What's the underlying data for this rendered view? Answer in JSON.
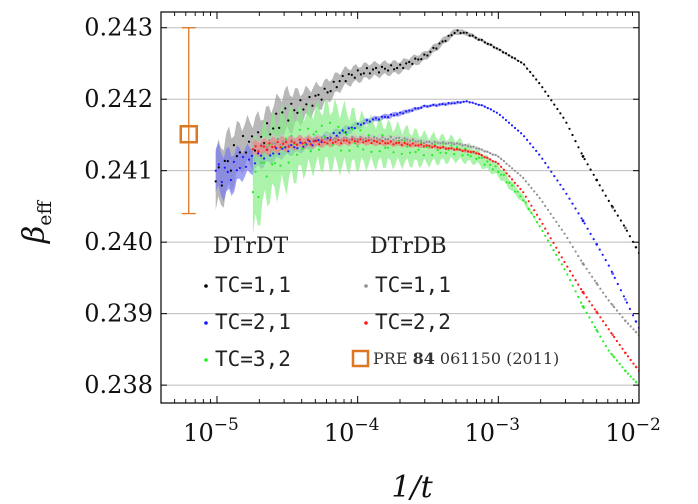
{
  "chart_data": {
    "type": "scatter",
    "xlabel": "1/t",
    "ylabel_main": "β",
    "ylabel_sub": "eff",
    "x_scale": "log",
    "xlim": [
      4e-06,
      0.01
    ],
    "ylim": [
      0.23775,
      0.24322
    ],
    "x_ticks": [
      {
        "value": 1e-05,
        "base": "10",
        "exp": "−5"
      },
      {
        "value": 0.0001,
        "base": "10",
        "exp": "−4"
      },
      {
        "value": 0.001,
        "base": "10",
        "exp": "−3"
      },
      {
        "value": 0.01,
        "base": "10",
        "exp": "−2"
      }
    ],
    "y_ticks": [
      {
        "value": 0.238,
        "label": "0.238"
      },
      {
        "value": 0.239,
        "label": "0.239"
      },
      {
        "value": 0.24,
        "label": "0.240"
      },
      {
        "value": 0.241,
        "label": "0.241"
      },
      {
        "value": 0.242,
        "label": "0.242"
      },
      {
        "value": 0.243,
        "label": "0.243"
      }
    ],
    "grid": "horizontal",
    "legend": {
      "placement": "bottom-left",
      "group_titles": [
        "DTrDT",
        "DTrDB"
      ],
      "entries": [
        {
          "series": "dtrdt_11",
          "label": "TC=1,1"
        },
        {
          "series": "dtrdt_21",
          "label": "TC=2,1"
        },
        {
          "series": "dtrdt_32",
          "label": "TC=3,2"
        },
        {
          "series": "dtrdb_11",
          "label": "TC=1,1"
        },
        {
          "series": "dtrdb_22",
          "label": "TC=2,2"
        },
        {
          "series": "ref",
          "label_pre": "PRE ",
          "label_bold": "84",
          "label_post": " 061150 (2011)"
        }
      ]
    },
    "series": [
      {
        "id": "dtrdt_11",
        "color": "#000000",
        "band_color": "#9a9a9a",
        "x": [
          9.8e-06,
          1.2e-05,
          1.5e-05,
          1.8e-05,
          2.2e-05,
          3e-05,
          4e-05,
          6e-05,
          8e-05,
          0.00012,
          0.0002,
          0.0003,
          0.0004,
          0.0005,
          0.0006,
          0.0008,
          0.001,
          0.0015,
          0.002,
          0.003,
          0.004,
          0.006,
          0.008,
          0.01
        ],
        "y": [
          0.24085,
          0.2411,
          0.24135,
          0.2414,
          0.2415,
          0.2418,
          0.2419,
          0.2421,
          0.2423,
          0.2424,
          0.24245,
          0.2426,
          0.2428,
          0.24295,
          0.24292,
          0.2428,
          0.2427,
          0.2425,
          0.2422,
          0.2417,
          0.2412,
          0.2406,
          0.2402,
          0.23985
        ],
        "err": [
          0.0004,
          0.0004,
          0.0003,
          0.0003,
          0.0003,
          0.0003,
          0.0002,
          0.00015,
          0.00012,
          0.0001,
          8e-05,
          6e-05,
          5e-05,
          4e-05,
          3e-05,
          2e-05,
          2e-05,
          1e-05,
          0,
          0,
          0,
          0,
          0,
          0
        ]
      },
      {
        "id": "dtrdt_21",
        "color": "#1a1aff",
        "band_color": "#7a7af0",
        "x": [
          9.8e-06,
          1.2e-05,
          1.5e-05,
          2e-05,
          3e-05,
          5e-05,
          8e-05,
          0.00012,
          0.0002,
          0.0003,
          0.0005,
          0.0006,
          0.0008,
          0.001,
          0.0015,
          0.002,
          0.003,
          0.004,
          0.006,
          0.008,
          0.01
        ],
        "y": [
          0.241,
          0.24095,
          0.2411,
          0.2412,
          0.2413,
          0.2414,
          0.24155,
          0.2417,
          0.2418,
          0.2419,
          0.24195,
          0.24197,
          0.2419,
          0.2418,
          0.2415,
          0.2412,
          0.2407,
          0.2403,
          0.2397,
          0.2392,
          0.2388
        ],
        "err": [
          0.0003,
          0.0003,
          0.0002,
          0.00015,
          0.0001,
          8e-05,
          6e-05,
          4e-05,
          3e-05,
          2e-05,
          2e-05,
          1e-05,
          1e-05,
          0,
          0,
          0,
          0,
          0,
          0,
          0,
          0
        ]
      },
      {
        "id": "dtrdt_32",
        "color": "#22ee22",
        "band_color": "#88ee88",
        "x": [
          1.8e-05,
          2.2e-05,
          3e-05,
          4e-05,
          6e-05,
          8e-05,
          0.00012,
          0.0002,
          0.0003,
          0.0005,
          0.0007,
          0.001,
          0.0015,
          0.002,
          0.003,
          0.004,
          0.006,
          0.008,
          0.01
        ],
        "y": [
          0.2407,
          0.2411,
          0.2413,
          0.2414,
          0.2415,
          0.24145,
          0.2414,
          0.24135,
          0.2413,
          0.2413,
          0.2412,
          0.241,
          0.2406,
          0.2402,
          0.2396,
          0.2391,
          0.2385,
          0.2382,
          0.238
        ],
        "err": [
          0.0006,
          0.0005,
          0.0005,
          0.0004,
          0.0004,
          0.0004,
          0.0003,
          0.00025,
          0.0002,
          0.00015,
          0.0001,
          8e-05,
          5e-05,
          0,
          0,
          0,
          0,
          0,
          0
        ]
      },
      {
        "id": "dtrdb_11",
        "color": "#909090",
        "band_color": "#c8c8c8",
        "x": [
          1.8e-05,
          2.5e-05,
          4e-05,
          6e-05,
          0.0001,
          0.0002,
          0.0003,
          0.0005,
          0.0007,
          0.001,
          0.0015,
          0.002,
          0.003,
          0.004,
          0.006,
          0.008,
          0.01
        ],
        "y": [
          0.2413,
          0.2414,
          0.2414,
          0.24145,
          0.24145,
          0.24145,
          0.2414,
          0.24138,
          0.24132,
          0.2412,
          0.2409,
          0.2406,
          0.2401,
          0.2397,
          0.2392,
          0.2389,
          0.2387
        ],
        "err": [
          0.0001,
          0.0001,
          8e-05,
          6e-05,
          5e-05,
          4e-05,
          3e-05,
          2e-05,
          2e-05,
          1e-05,
          0,
          0,
          0,
          0,
          0,
          0,
          0
        ]
      },
      {
        "id": "dtrdb_22",
        "color": "#ff1a1a",
        "band_color": "#f08080",
        "x": [
          1.8e-05,
          2.5e-05,
          4e-05,
          6e-05,
          0.0001,
          0.0002,
          0.0003,
          0.0005,
          0.0007,
          0.001,
          0.0015,
          0.002,
          0.003,
          0.004,
          0.006,
          0.008,
          0.01
        ],
        "y": [
          0.2413,
          0.24135,
          0.2414,
          0.2414,
          0.24142,
          0.24138,
          0.24135,
          0.2413,
          0.24125,
          0.2411,
          0.2407,
          0.2403,
          0.2397,
          0.2393,
          0.2388,
          0.23845,
          0.2382
        ],
        "err": [
          0.0001,
          0.0001,
          8e-05,
          6e-05,
          5e-05,
          4e-05,
          3e-05,
          2e-05,
          2e-05,
          1e-05,
          0,
          0,
          0,
          0,
          0,
          0,
          0
        ]
      }
    ],
    "reference_point": {
      "x": 6.3e-06,
      "y": 0.24151,
      "yerr_low": 0.00111,
      "yerr_high": 0.00149,
      "color": "#dd7722"
    }
  }
}
